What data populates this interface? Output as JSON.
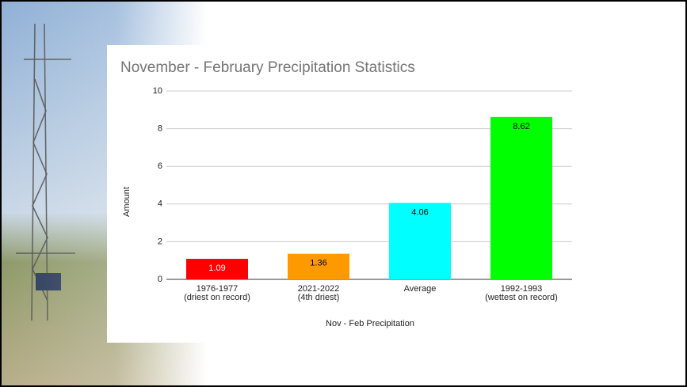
{
  "chart_data": {
    "type": "bar",
    "title": "November - February Precipitation Statistics",
    "x_label": "Nov - Feb Precipitation",
    "y_label": "Amount",
    "categories": [
      [
        "1976-1977",
        "(driest on record)"
      ],
      [
        "2021-2022",
        "(4th driest)"
      ],
      [
        "Average"
      ],
      [
        "1992-1993",
        "(wettest on record)"
      ]
    ],
    "values": [
      1.09,
      1.36,
      4.06,
      8.62
    ],
    "colors": [
      "#ff0000",
      "#ff9900",
      "#00ffff",
      "#00ff00"
    ],
    "value_label_colors": [
      "#ffffff",
      "#000000",
      "#000000",
      "#000000"
    ],
    "ylim": [
      0,
      10
    ],
    "yticks": [
      0,
      2,
      4,
      6,
      8,
      10
    ],
    "grid": true
  }
}
